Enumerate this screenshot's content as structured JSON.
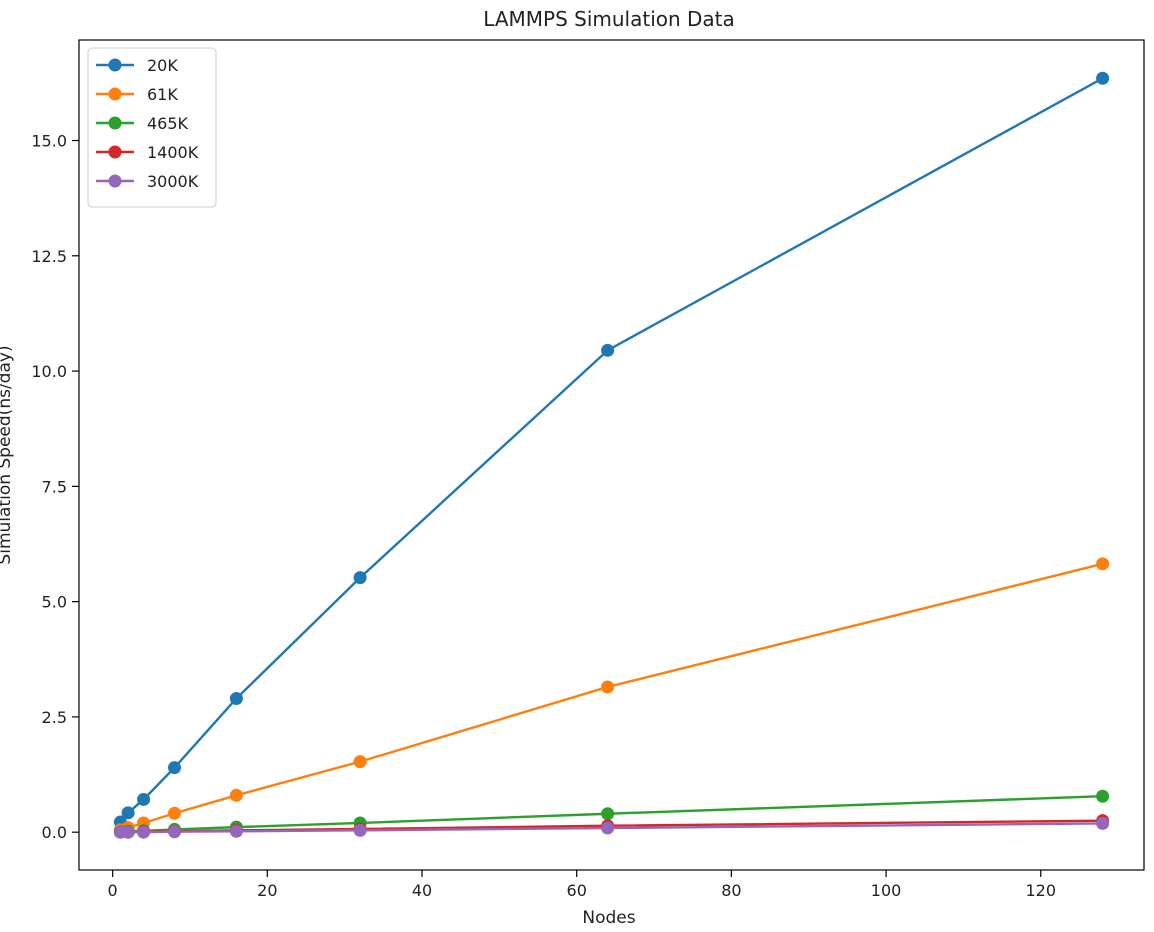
{
  "chart_data": {
    "type": "line",
    "title": "LAMMPS Simulation Data",
    "xlabel": "Nodes",
    "ylabel": "Simulation Speed(ns/day)",
    "xlim": [
      -4.35,
      133.35
    ],
    "ylim": [
      -0.82,
      17.18
    ],
    "xticks": [
      0,
      20,
      40,
      60,
      80,
      100,
      120
    ],
    "yticks": [
      0.0,
      2.5,
      5.0,
      7.5,
      10.0,
      12.5,
      15.0
    ],
    "grid": false,
    "legend_position": "top-left",
    "series": [
      {
        "name": "20K",
        "color": "#1f77b4",
        "x": [
          1,
          2,
          4,
          8,
          16,
          32,
          64,
          128
        ],
        "y": [
          0.22,
          0.42,
          0.71,
          1.4,
          2.9,
          5.52,
          10.45,
          16.35
        ]
      },
      {
        "name": "61K",
        "color": "#ff7f0e",
        "x": [
          1,
          2,
          4,
          8,
          16,
          32,
          64,
          128
        ],
        "y": [
          0.05,
          0.1,
          0.2,
          0.41,
          0.8,
          1.53,
          3.15,
          5.82
        ]
      },
      {
        "name": "465K",
        "color": "#2ca02c",
        "x": [
          1,
          2,
          4,
          8,
          16,
          32,
          64,
          128
        ],
        "y": [
          0.01,
          0.02,
          0.03,
          0.06,
          0.11,
          0.2,
          0.4,
          0.78
        ]
      },
      {
        "name": "1400K",
        "color": "#d62728",
        "x": [
          1,
          2,
          4,
          8,
          16,
          32,
          64,
          128
        ],
        "y": [
          0.0,
          0.0,
          0.01,
          0.02,
          0.04,
          0.07,
          0.14,
          0.25
        ]
      },
      {
        "name": "3000K",
        "color": "#9467bd",
        "x": [
          1,
          2,
          4,
          8,
          16,
          32,
          64,
          128
        ],
        "y": [
          0.0,
          0.0,
          0.0,
          0.01,
          0.02,
          0.04,
          0.09,
          0.19
        ]
      }
    ]
  }
}
